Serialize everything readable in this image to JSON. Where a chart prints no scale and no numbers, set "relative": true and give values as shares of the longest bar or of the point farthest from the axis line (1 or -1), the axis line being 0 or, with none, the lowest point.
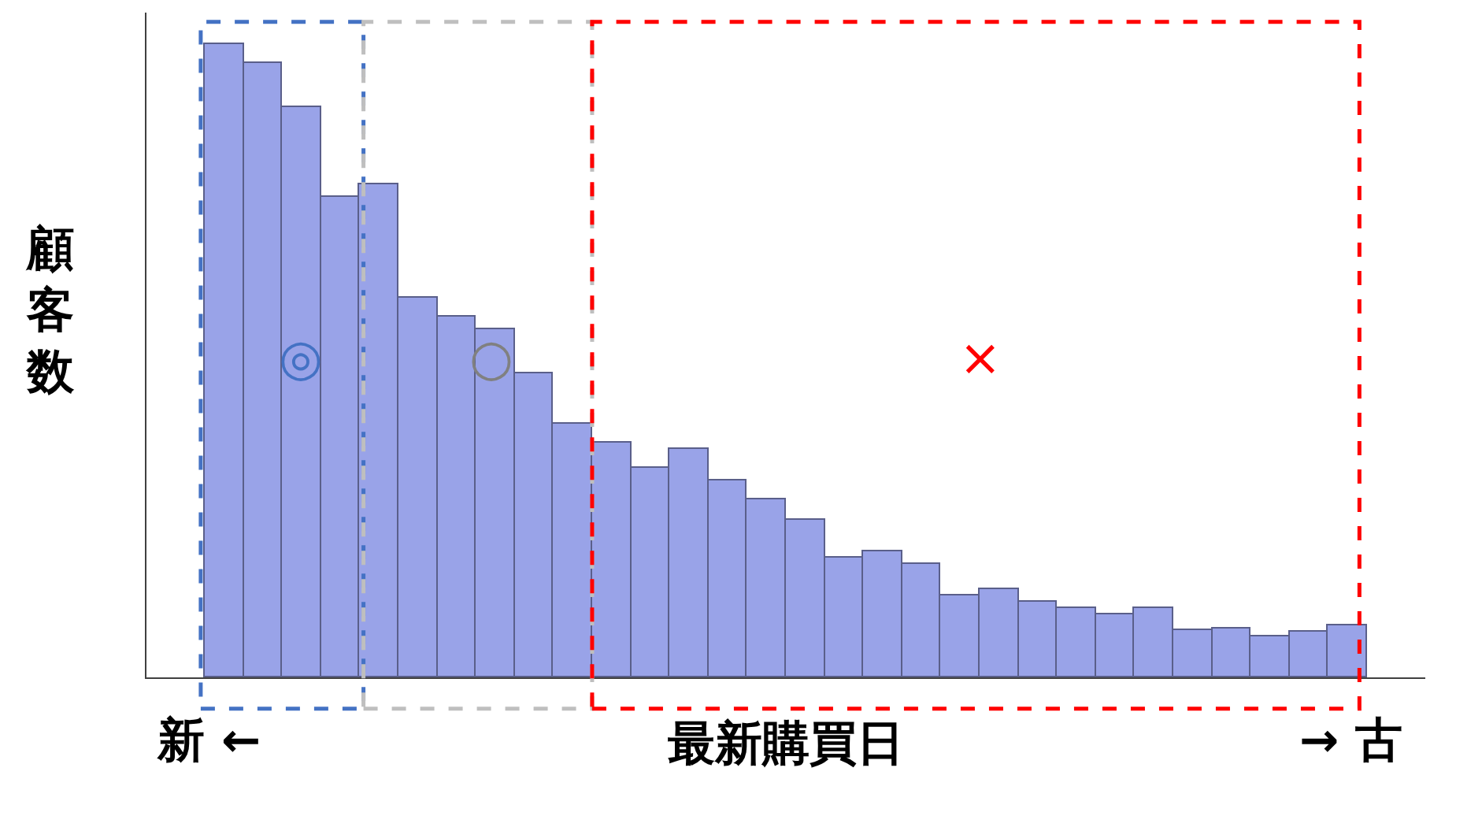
{
  "chart_data": {
    "type": "bar",
    "relative": true,
    "ylabel": "顧客数",
    "xlabel": "最新購買日",
    "categories": [
      null,
      null,
      null,
      null,
      null,
      null,
      null,
      null,
      null,
      null,
      null,
      null,
      null,
      null,
      null,
      null,
      null,
      null,
      null,
      null,
      null,
      null,
      null,
      null,
      null,
      null,
      null,
      null,
      null,
      null
    ],
    "values": [
      1.0,
      0.97,
      0.9,
      0.76,
      0.78,
      0.6,
      0.57,
      0.55,
      0.48,
      0.4,
      0.37,
      0.33,
      0.36,
      0.31,
      0.28,
      0.25,
      0.19,
      0.2,
      0.18,
      0.13,
      0.14,
      0.12,
      0.11,
      0.1,
      0.11,
      0.075,
      0.077,
      0.065,
      0.072,
      0.082
    ],
    "color": "#99a3e8",
    "annotations": [
      "◎",
      "○",
      "×",
      "新 ←",
      "→ 古"
    ],
    "legend": false
  }
}
